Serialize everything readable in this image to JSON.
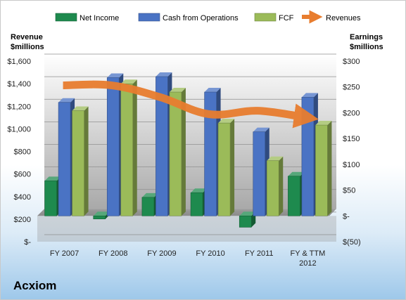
{
  "company_name": "Acxiom",
  "chart_data": {
    "type": "bar",
    "categories": [
      "FY 2007",
      "FY 2008",
      "FY 2009",
      "FY 2010",
      "FY 2011",
      "FY & TTM 2012"
    ],
    "y_left": {
      "label_lines": [
        "Revenue",
        "$millions"
      ],
      "range": [
        0,
        1600
      ],
      "ticks": [
        0,
        200,
        400,
        600,
        800,
        1000,
        1200,
        1400,
        1600
      ],
      "tick_labels": [
        "$-",
        "$200",
        "$400",
        "$600",
        "$800",
        "$1,000",
        "$1,200",
        "$1,400",
        "$1,600"
      ]
    },
    "y_right": {
      "label_lines": [
        "Earnings",
        "$millions"
      ],
      "range": [
        -50,
        300
      ],
      "ticks": [
        -50,
        0,
        50,
        100,
        150,
        200,
        250,
        300
      ],
      "tick_labels": [
        "$(50)",
        "$-",
        "$50",
        "$100",
        "$150",
        "$200",
        "$250",
        "$300"
      ]
    },
    "series": [
      {
        "name": "Net Income",
        "type": "bar",
        "axis": "right",
        "color": "#1e8a4e",
        "values": [
          68,
          -6,
          36,
          45,
          -22,
          77
        ]
      },
      {
        "name": "Cash from Operations",
        "type": "bar",
        "axis": "right",
        "color": "#4a73c4",
        "values": [
          220,
          268,
          270,
          240,
          163,
          230
        ]
      },
      {
        "name": "FCF",
        "type": "bar",
        "axis": "right",
        "color": "#9bbb59",
        "values": [
          204,
          256,
          240,
          180,
          107,
          176
        ]
      },
      {
        "name": "Revenues",
        "type": "line",
        "axis": "left",
        "color": "#e87d2f",
        "values": [
          1385,
          1385,
          1280,
          1130,
          1160,
          1100
        ]
      }
    ],
    "grid": true,
    "legend_position": "top"
  }
}
